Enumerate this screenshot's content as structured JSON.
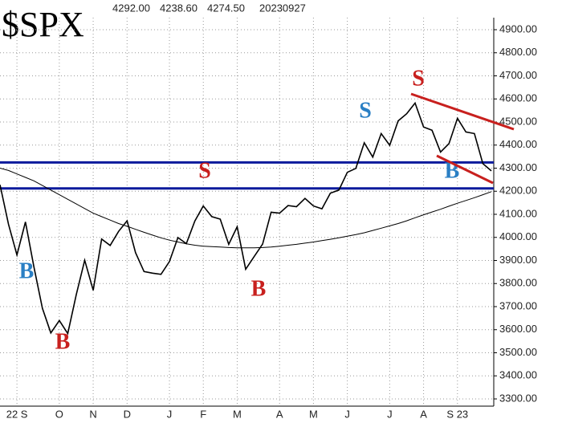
{
  "chart_data": {
    "type": "line",
    "title": "$SPX",
    "header_values": [
      "4292.00",
      "4238.60",
      "4274.50",
      "20230927"
    ],
    "categories": [
      null,
      null,
      "22 S",
      null,
      null,
      null,
      null,
      "O",
      null,
      null,
      null,
      "N",
      null,
      null,
      null,
      "D",
      null,
      null,
      null,
      null,
      "J",
      null,
      null,
      null,
      "F",
      null,
      null,
      null,
      "M",
      null,
      null,
      null,
      null,
      "A",
      null,
      null,
      null,
      "M",
      null,
      null,
      null,
      "J",
      null,
      null,
      null,
      null,
      "J",
      null,
      null,
      null,
      "A",
      null,
      null,
      null,
      "S 23",
      null,
      null,
      null,
      null
    ],
    "series": [
      {
        "color": "#000000",
        "values": [
          4228,
          4057,
          3924,
          4067,
          3873,
          3693,
          3586,
          3640,
          3583,
          3752,
          3901,
          3771,
          3993,
          3965,
          4026,
          4072,
          3934,
          3852,
          3845,
          3840,
          3895,
          3999,
          3973,
          4071,
          4136,
          4090,
          4079,
          3970,
          4046,
          3862,
          3917,
          3971,
          4109,
          4105,
          4138,
          4133,
          4169,
          4136,
          4124,
          4192,
          4205,
          4282,
          4299,
          4410,
          4348,
          4450,
          4399,
          4505,
          4536,
          4582,
          4478,
          4464,
          4370,
          4406,
          4516,
          4457,
          4450,
          4320,
          4288
        ]
      },
      {
        "color": "#000000",
        "values": [
          4300,
          4290,
          4275,
          4260,
          4245,
          4225,
          4205,
          4185,
          4165,
          4145,
          4125,
          4105,
          4090,
          4075,
          4060,
          4048,
          4035,
          4022,
          4010,
          3998,
          3988,
          3980,
          3972,
          3966,
          3962,
          3960,
          3958,
          3956,
          3955,
          3955,
          3955,
          3956,
          3958,
          3962,
          3966,
          3970,
          3975,
          3980,
          3986,
          3992,
          3998,
          4005,
          4012,
          4020,
          4030,
          4040,
          4050,
          4060,
          4072,
          4085,
          4098,
          4110,
          4122,
          4135,
          4148,
          4160,
          4172,
          4185,
          4198
        ]
      }
    ],
    "hlines": [
      4325,
      4212
    ],
    "hline_color": "#0a1a9c",
    "annotations": [
      {
        "text": "B",
        "color": "#2a7fc4"
      },
      {
        "text": "B",
        "color": "#c8201e"
      },
      {
        "text": "S",
        "color": "#c8201e"
      },
      {
        "text": "B",
        "color": "#c8201e"
      },
      {
        "text": "S",
        "color": "#2a7fc4"
      },
      {
        "text": "S",
        "color": "#c8201e"
      },
      {
        "text": "B",
        "color": "#2a7fc4"
      }
    ],
    "ylim": [
      3300,
      4900
    ],
    "yticks": [
      {
        "value": 3300,
        "label": "3300.00"
      },
      {
        "value": 3400,
        "label": "3400.00"
      },
      {
        "value": 3500,
        "label": "3500.00"
      },
      {
        "value": 3600,
        "label": "3600.00"
      },
      {
        "value": 3700,
        "label": "3700.00"
      },
      {
        "value": 3800,
        "label": "3800.00"
      },
      {
        "value": 3900,
        "label": "3900.00"
      },
      {
        "value": 4000,
        "label": "4000.00"
      },
      {
        "value": 4100,
        "label": "4100.00"
      },
      {
        "value": 4200,
        "label": "4200.00"
      },
      {
        "value": 4300,
        "label": "4300.00"
      },
      {
        "value": 4400,
        "label": "4400.00"
      },
      {
        "value": 4500,
        "label": "4500.00"
      },
      {
        "value": 4600,
        "label": "4600.00"
      },
      {
        "value": 4700,
        "label": "4700.00"
      },
      {
        "value": 4800,
        "label": "4800.00"
      },
      {
        "value": 4900,
        "label": "4900.00"
      }
    ],
    "grid": true
  }
}
